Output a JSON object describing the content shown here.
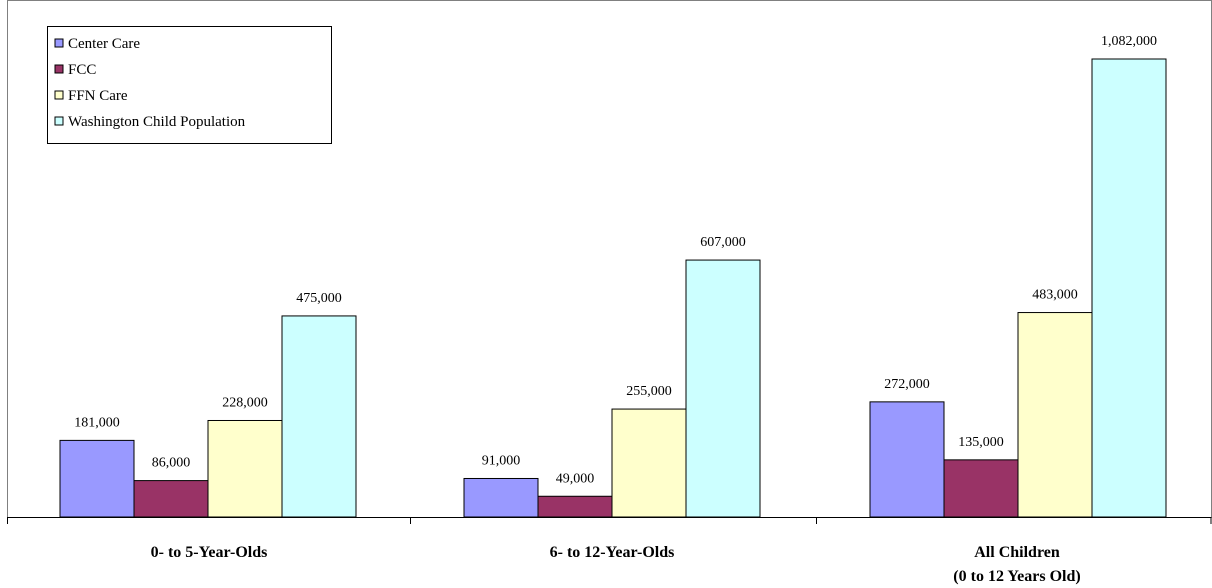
{
  "chart_data": {
    "type": "bar",
    "categories": [
      "0- to 5-Year-Olds",
      "6- to 12-Year-Olds",
      "All Children|(0 to 12 Years Old)"
    ],
    "series": [
      {
        "name": "Center Care",
        "values": [
          181000,
          91000,
          272000
        ],
        "labels": [
          "181,000",
          "91,000",
          "272,000"
        ],
        "color": "#9999ff"
      },
      {
        "name": "FCC",
        "values": [
          86000,
          49000,
          135000
        ],
        "labels": [
          "86,000",
          "49,000",
          "135,000"
        ],
        "color": "#993366"
      },
      {
        "name": "FFN Care",
        "values": [
          228000,
          255000,
          483000
        ],
        "labels": [
          "228,000",
          "255,000",
          "483,000"
        ],
        "color": "#ffffcc"
      },
      {
        "name": "Washington Child Population",
        "values": [
          475000,
          607000,
          1082000
        ],
        "labels": [
          "475,000",
          "607,000",
          "1,082,000"
        ],
        "color": "#ccffff"
      }
    ],
    "ylim": [
      0,
      1200000
    ],
    "grid": false,
    "legend": "top-left"
  }
}
